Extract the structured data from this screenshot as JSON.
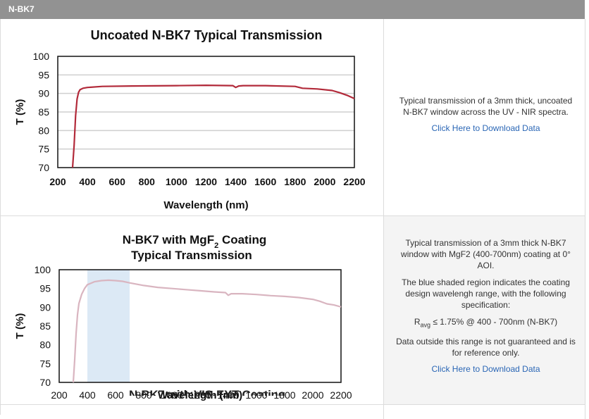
{
  "header": {
    "title": "N-BK7"
  },
  "rows": [
    {
      "description": "Typical transmission of a 3mm thick, uncoated N-BK7 window across the UV - NIR spectra.",
      "link": "Click Here to Download Data"
    },
    {
      "description_lines": [
        "Typical transmission of a 3mm thick N-BK7 window with MgF2 (400-700nm) coating at 0° AOI.",
        "The blue shaded region indicates the coating design wavelengh range, with the following specification:"
      ],
      "spec_r": "R",
      "spec_sub": "avg",
      "spec_rest": " ≤ 1.75% @ 400 - 700nm (N-BK7)",
      "disclaimer": "Data outside this range is not guaranteed and is for reference only.",
      "link": "Click Here to Download Data"
    }
  ],
  "row3_title": "N-BK7 with VIS-EXT Coating",
  "chart_data": [
    {
      "type": "line",
      "title": "Uncoated N-BK7 Typical Transmission",
      "xlabel": "Wavelength (nm)",
      "ylabel": "T (%)",
      "xlim": [
        200,
        2200
      ],
      "ylim": [
        70,
        100
      ],
      "xticks": [
        200,
        400,
        600,
        800,
        1000,
        1200,
        1400,
        1600,
        1800,
        2000,
        2200
      ],
      "yticks": [
        70,
        75,
        80,
        85,
        90,
        95,
        100
      ],
      "grid": true,
      "color": "#b22a3a",
      "x": [
        300,
        310,
        320,
        330,
        340,
        350,
        370,
        400,
        500,
        700,
        1000,
        1200,
        1380,
        1400,
        1420,
        1450,
        1600,
        1800,
        1850,
        1950,
        2050,
        2100,
        2150,
        2200
      ],
      "y": [
        70,
        76,
        84,
        88.5,
        90.3,
        91.0,
        91.4,
        91.6,
        91.9,
        92.0,
        92.1,
        92.2,
        92.1,
        91.6,
        92.0,
        92.1,
        92.1,
        91.9,
        91.4,
        91.2,
        90.8,
        90.2,
        89.5,
        88.6
      ]
    },
    {
      "type": "line",
      "title_lines": [
        "N-BK7 with MgF",
        "Typical Transmission"
      ],
      "title_sub": "2",
      "title_tail": " Coating",
      "xlabel": "Wavelength (nm)",
      "ylabel": "T (%)",
      "xlim": [
        200,
        2200
      ],
      "ylim": [
        70,
        100
      ],
      "xticks": [
        200,
        400,
        600,
        800,
        1000,
        1200,
        1400,
        1600,
        1800,
        2000,
        2200
      ],
      "yticks": [
        70,
        75,
        80,
        85,
        90,
        95,
        100
      ],
      "grid": false,
      "color": "#d9b5c0",
      "shaded_band": [
        400,
        700
      ],
      "band_color": "#dce9f5",
      "x": [
        300,
        310,
        320,
        330,
        340,
        360,
        380,
        400,
        450,
        500,
        550,
        600,
        650,
        700,
        800,
        900,
        1000,
        1100,
        1200,
        1300,
        1380,
        1400,
        1420,
        1500,
        1600,
        1700,
        1800,
        1900,
        2000,
        2050,
        2100,
        2150,
        2200
      ],
      "y": [
        70,
        76,
        83,
        88,
        91,
        93.5,
        95,
        96,
        96.8,
        97.1,
        97.2,
        97.1,
        96.9,
        96.5,
        95.8,
        95.3,
        95.0,
        94.7,
        94.4,
        94.1,
        93.9,
        93.2,
        93.6,
        93.6,
        93.4,
        93.1,
        92.9,
        92.6,
        92.1,
        91.6,
        90.9,
        90.6,
        90.1
      ]
    }
  ]
}
